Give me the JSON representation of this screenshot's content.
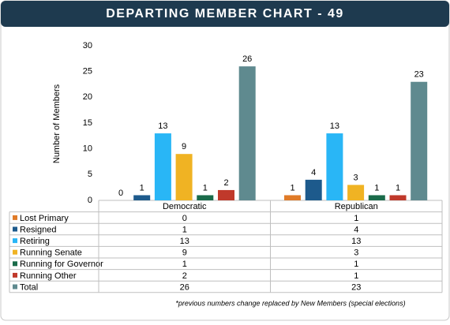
{
  "chart_data": {
    "type": "bar",
    "title": "DEPARTING MEMBER CHART - 49",
    "y_label": "Number of Members",
    "categories": [
      "Democratic",
      "Republican"
    ],
    "series": [
      {
        "name": "Lost Primary",
        "color": "#e07b28",
        "values": [
          0,
          1
        ]
      },
      {
        "name": "Resigned",
        "color": "#1d5a8c",
        "values": [
          1,
          4
        ]
      },
      {
        "name": "Retiring",
        "color": "#29b6f6",
        "values": [
          13,
          13
        ]
      },
      {
        "name": "Running Senate",
        "color": "#f0b323",
        "values": [
          9,
          3
        ]
      },
      {
        "name": "Running for Governor",
        "color": "#1a6b4a",
        "values": [
          1,
          1
        ]
      },
      {
        "name": "Running Other",
        "color": "#c0392b",
        "values": [
          2,
          1
        ]
      },
      {
        "name": "Total",
        "color": "#5f8a8f",
        "values": [
          26,
          23
        ]
      }
    ],
    "ylim": [
      0,
      30
    ],
    "yticks": [
      0,
      5,
      10,
      15,
      20,
      25,
      30
    ],
    "footnote": "*previous numbers change replaced by New Members (special elections)"
  }
}
